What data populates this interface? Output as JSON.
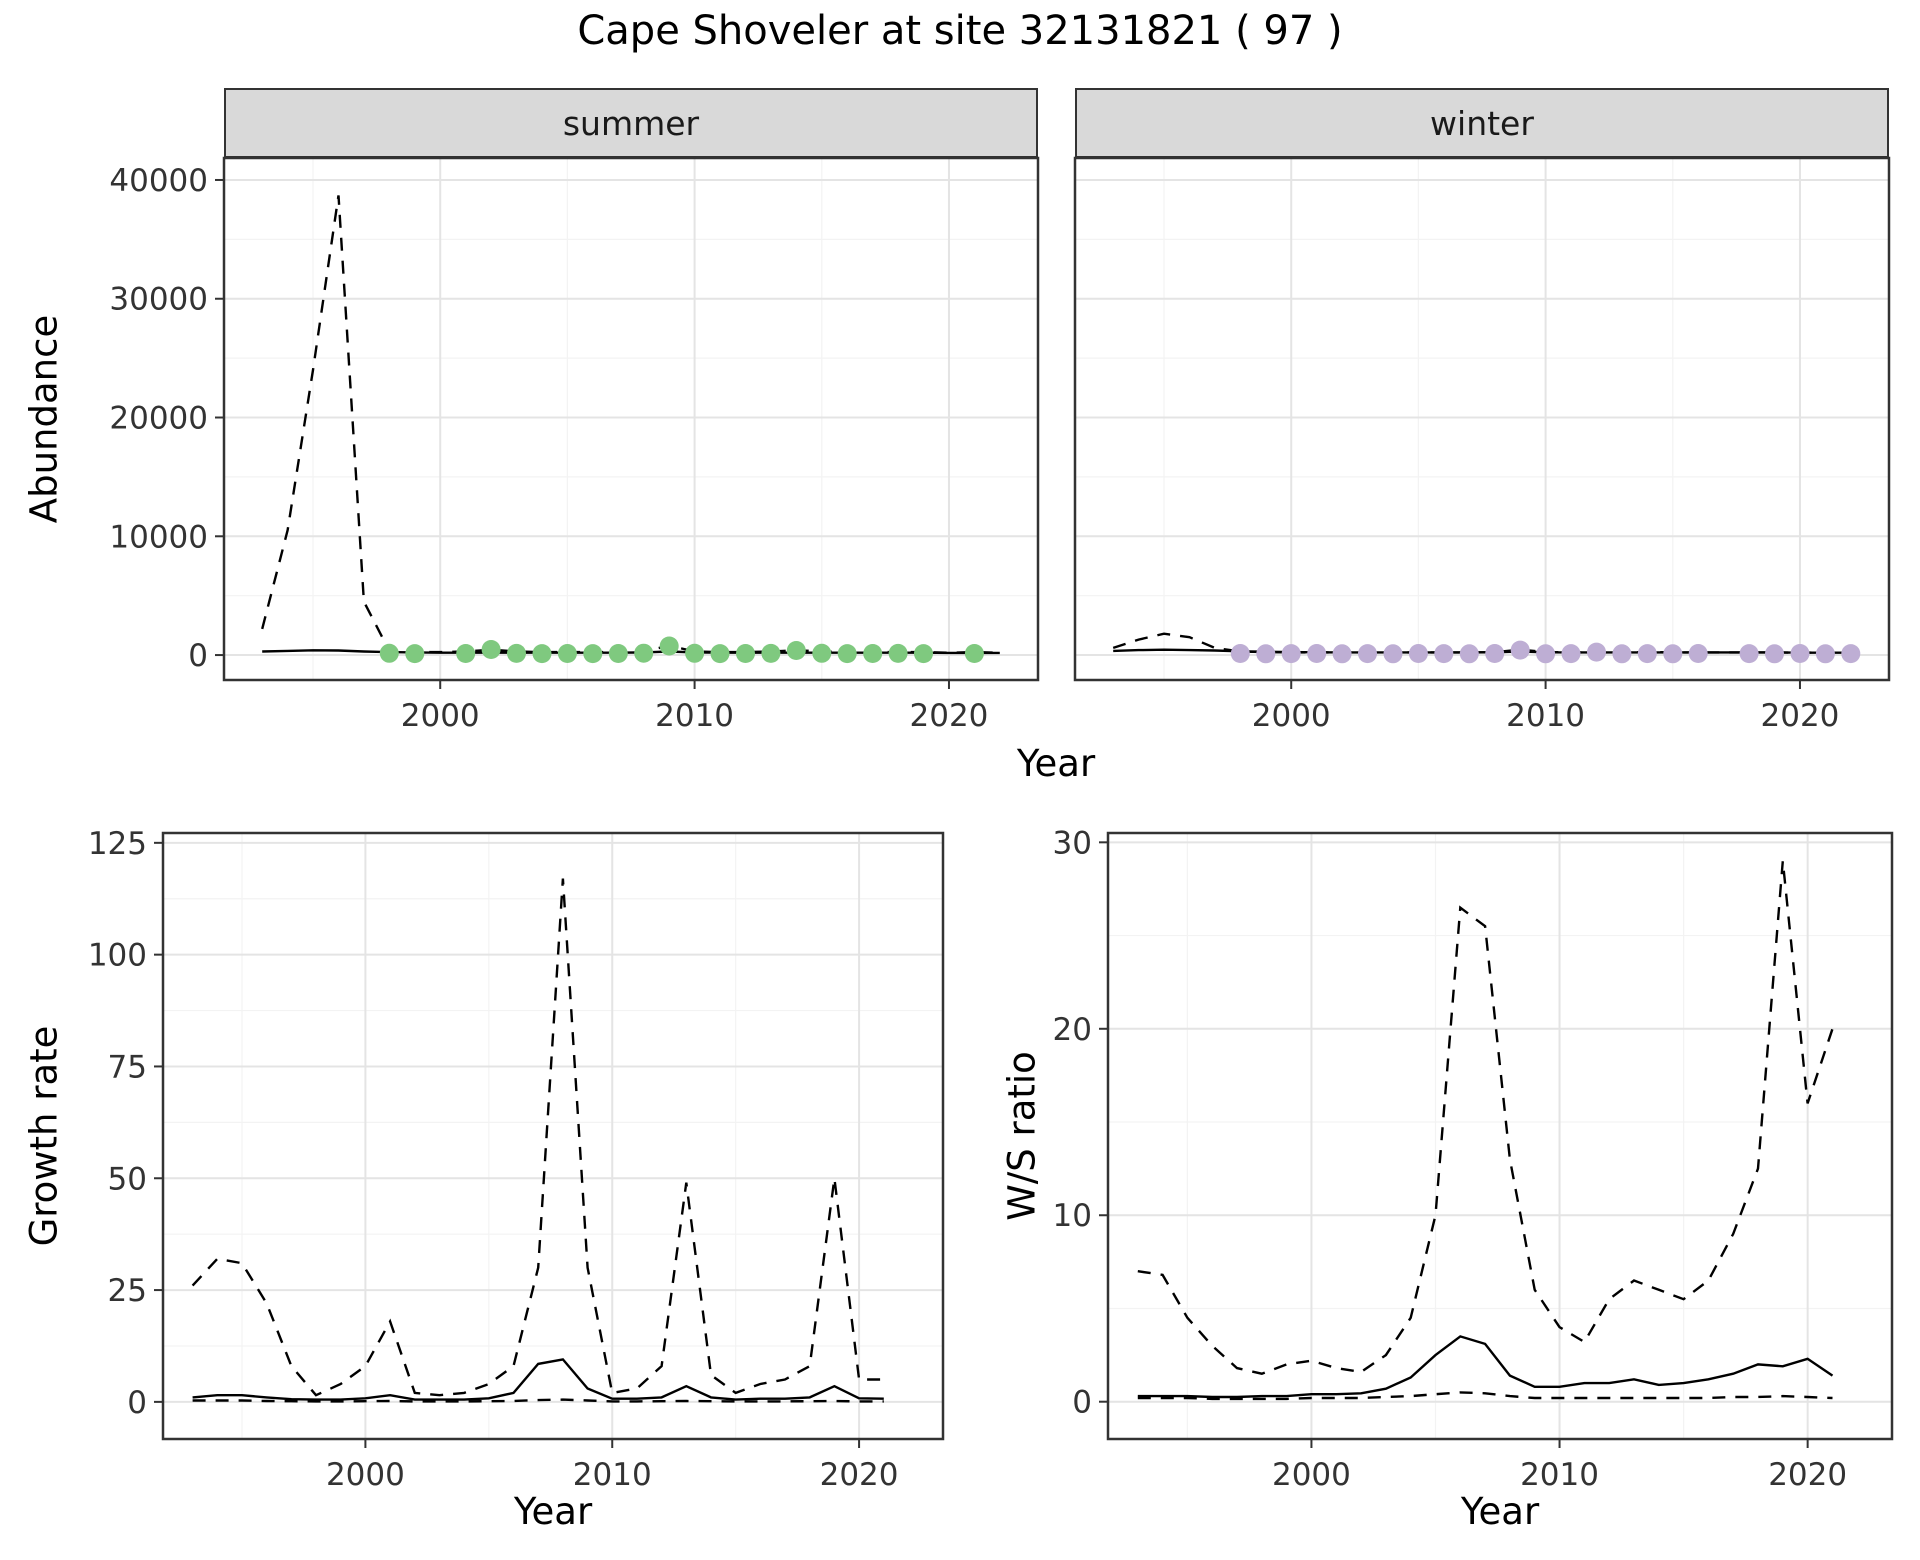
{
  "title": "Cape Shoveler at site 32131821 ( 97 )",
  "colors": {
    "summer_point": "#7FC97F",
    "winter_point": "#BEAED4",
    "line": "#000000",
    "grid_major": "#E4E4E4",
    "grid_minor": "#F3F3F3",
    "panel_border": "#333333",
    "strip_bg": "#D9D9D9"
  },
  "chart_data": [
    {
      "type": "line",
      "title": "",
      "xlabel": "Year",
      "ylabel": "Abundance",
      "x_domain": [
        1991.5,
        2023.5
      ],
      "y_domain": [
        -2100,
        41850
      ],
      "x_ticks": [
        2000,
        2010,
        2020
      ],
      "x_tick_labels": [
        "2000",
        "2010",
        "2020"
      ],
      "x_minor": [
        1995,
        2005,
        2015
      ],
      "y_ticks": [
        0,
        10000,
        20000,
        30000,
        40000
      ],
      "y_tick_labels": [
        "0",
        "10000",
        "20000",
        "30000",
        "40000"
      ],
      "y_minor": [
        5000,
        15000,
        25000,
        35000
      ],
      "legend": "none",
      "facets": [
        {
          "label": "summer",
          "series": [
            {
              "name": "ci-upper",
              "style": "dashed",
              "x": [
                1993,
                1994,
                1995,
                1996,
                1997,
                1998,
                1999,
                2000,
                2001,
                2002,
                2003,
                2004,
                2005,
                2006,
                2007,
                2008,
                2009,
                2010,
                2011,
                2012,
                2013,
                2014,
                2015,
                2016,
                2017,
                2018,
                2019,
                2020,
                2021,
                2022
              ],
              "y": [
                2200,
                10500,
                24000,
                38700,
                4500,
                350,
                250,
                250,
                300,
                450,
                300,
                250,
                250,
                250,
                250,
                300,
                800,
                300,
                250,
                250,
                300,
                400,
                300,
                250,
                250,
                250,
                250,
                200,
                250,
                200
              ]
            },
            {
              "name": "model-fit",
              "style": "solid",
              "x": [
                1993,
                1994,
                1995,
                1996,
                1997,
                1998,
                1999,
                2000,
                2001,
                2002,
                2003,
                2004,
                2005,
                2006,
                2007,
                2008,
                2009,
                2010,
                2011,
                2012,
                2013,
                2014,
                2015,
                2016,
                2017,
                2018,
                2019,
                2020,
                2021,
                2022
              ],
              "y": [
                300,
                350,
                400,
                380,
                300,
                250,
                220,
                200,
                200,
                200,
                200,
                200,
                200,
                200,
                200,
                220,
                300,
                220,
                200,
                200,
                200,
                200,
                200,
                200,
                200,
                200,
                200,
                180,
                180,
                180
              ]
            },
            {
              "name": "observed-count",
              "style": "points",
              "color": "#7FC97F",
              "x": [
                1998,
                1999,
                2001,
                2002,
                2003,
                2004,
                2005,
                2006,
                2007,
                2008,
                2009,
                2010,
                2011,
                2012,
                2013,
                2014,
                2015,
                2016,
                2017,
                2018,
                2019,
                2021
              ],
              "y": [
                150,
                120,
                130,
                470,
                140,
                120,
                130,
                120,
                130,
                160,
                760,
                150,
                120,
                130,
                140,
                380,
                150,
                120,
                130,
                140,
                120,
                130
              ]
            }
          ]
        },
        {
          "label": "winter",
          "series": [
            {
              "name": "ci-upper",
              "style": "dashed",
              "x": [
                1993,
                1994,
                1995,
                1996,
                1997,
                1998,
                1999,
                2000,
                2001,
                2002,
                2003,
                2004,
                2005,
                2006,
                2007,
                2008,
                2009,
                2010,
                2011,
                2012,
                2013,
                2014,
                2015,
                2016,
                2017,
                2018,
                2019,
                2020,
                2021,
                2022
              ],
              "y": [
                600,
                1300,
                1800,
                1500,
                600,
                300,
                250,
                220,
                220,
                220,
                220,
                220,
                220,
                220,
                220,
                250,
                450,
                250,
                220,
                220,
                220,
                250,
                220,
                220,
                220,
                220,
                220,
                200,
                220,
                200
              ]
            },
            {
              "name": "model-fit",
              "style": "solid",
              "x": [
                1993,
                1994,
                1995,
                1996,
                1997,
                1998,
                1999,
                2000,
                2001,
                2002,
                2003,
                2004,
                2005,
                2006,
                2007,
                2008,
                2009,
                2010,
                2011,
                2012,
                2013,
                2014,
                2015,
                2016,
                2017,
                2018,
                2019,
                2020,
                2021,
                2022
              ],
              "y": [
                350,
                420,
                450,
                420,
                380,
                320,
                280,
                250,
                230,
                220,
                220,
                220,
                220,
                220,
                220,
                230,
                300,
                230,
                220,
                220,
                220,
                220,
                220,
                220,
                220,
                220,
                220,
                200,
                200,
                200
              ]
            },
            {
              "name": "observed-count",
              "style": "points",
              "color": "#BEAED4",
              "x": [
                1998,
                1999,
                2000,
                2001,
                2002,
                2003,
                2004,
                2005,
                2006,
                2007,
                2008,
                2009,
                2010,
                2011,
                2012,
                2013,
                2014,
                2015,
                2016,
                2018,
                2019,
                2020,
                2021,
                2022
              ],
              "y": [
                130,
                110,
                120,
                130,
                110,
                120,
                110,
                130,
                120,
                110,
                130,
                420,
                110,
                120,
                250,
                110,
                120,
                110,
                130,
                120,
                110,
                130,
                110,
                120
              ]
            }
          ]
        }
      ]
    },
    {
      "type": "line",
      "title": "",
      "xlabel": "Year",
      "ylabel": "Growth rate",
      "x_domain": [
        1991.8,
        2023.4
      ],
      "y_domain": [
        -8.3,
        127.2
      ],
      "x_ticks": [
        2000,
        2010,
        2020
      ],
      "x_tick_labels": [
        "2000",
        "2010",
        "2020"
      ],
      "x_minor": [
        1995,
        2005,
        2015
      ],
      "y_ticks": [
        0,
        25,
        50,
        75,
        100,
        125
      ],
      "y_tick_labels": [
        "0",
        "25",
        "50",
        "75",
        "100",
        "125"
      ],
      "y_minor": [
        12.5,
        37.5,
        62.5,
        87.5,
        112.5
      ],
      "legend": "none",
      "series": [
        {
          "name": "ci-upper",
          "style": "dashed",
          "x": [
            1993,
            1994,
            1995,
            1996,
            1997,
            1998,
            1999,
            2000,
            2001,
            2002,
            2003,
            2004,
            2005,
            2006,
            2007,
            2008,
            2009,
            2010,
            2011,
            2012,
            2013,
            2014,
            2015,
            2016,
            2017,
            2018,
            2019,
            2020,
            2021
          ],
          "y": [
            26,
            32,
            31,
            22,
            8,
            1.5,
            4,
            8,
            18,
            2,
            1.5,
            2,
            4,
            8,
            30,
            117,
            30,
            2,
            3,
            8,
            49,
            6,
            2,
            4,
            5,
            8,
            50,
            5,
            5
          ]
        },
        {
          "name": "ci-lower",
          "style": "dashed",
          "x": [
            1993,
            1994,
            1995,
            1996,
            1997,
            1998,
            1999,
            2000,
            2001,
            2002,
            2003,
            2004,
            2005,
            2006,
            2007,
            2008,
            2009,
            2010,
            2011,
            2012,
            2013,
            2014,
            2015,
            2016,
            2017,
            2018,
            2019,
            2020,
            2021
          ],
          "y": [
            0.3,
            0.3,
            0.3,
            0.2,
            0.15,
            0.1,
            0.1,
            0.15,
            0.2,
            0.1,
            0.1,
            0.1,
            0.15,
            0.2,
            0.4,
            0.5,
            0.3,
            0.1,
            0.1,
            0.15,
            0.2,
            0.15,
            0.1,
            0.1,
            0.1,
            0.15,
            0.2,
            0.1,
            0.1
          ]
        },
        {
          "name": "estimate",
          "style": "solid",
          "x": [
            1993,
            1994,
            1995,
            1996,
            1997,
            1998,
            1999,
            2000,
            2001,
            2002,
            2003,
            2004,
            2005,
            2006,
            2007,
            2008,
            2009,
            2010,
            2011,
            2012,
            2013,
            2014,
            2015,
            2016,
            2017,
            2018,
            2019,
            2020,
            2021
          ],
          "y": [
            1,
            1.5,
            1.5,
            1,
            0.6,
            0.5,
            0.5,
            0.8,
            1.5,
            0.5,
            0.5,
            0.5,
            0.8,
            2,
            8.5,
            9.5,
            3,
            0.7,
            0.7,
            1,
            3.5,
            1,
            0.5,
            0.7,
            0.7,
            1,
            3.5,
            0.8,
            0.7
          ]
        }
      ]
    },
    {
      "type": "line",
      "title": "",
      "xlabel": "Year",
      "ylabel": "W/S ratio",
      "x_domain": [
        1991.8,
        2023.4
      ],
      "y_domain": [
        -2,
        30.5
      ],
      "x_ticks": [
        2000,
        2010,
        2020
      ],
      "x_tick_labels": [
        "2000",
        "2010",
        "2020"
      ],
      "x_minor": [
        1995,
        2005,
        2015
      ],
      "y_ticks": [
        0,
        10,
        20,
        30
      ],
      "y_tick_labels": [
        "0",
        "10",
        "20",
        "30"
      ],
      "y_minor": [
        5,
        15,
        25
      ],
      "legend": "none",
      "series": [
        {
          "name": "ci-upper",
          "style": "dashed",
          "x": [
            1993,
            1994,
            1995,
            1996,
            1997,
            1998,
            1999,
            2000,
            2001,
            2002,
            2003,
            2004,
            2005,
            2006,
            2007,
            2008,
            2009,
            2010,
            2011,
            2012,
            2013,
            2014,
            2015,
            2016,
            2017,
            2018,
            2019,
            2020,
            2021
          ],
          "y": [
            7,
            6.8,
            4.5,
            3,
            1.8,
            1.5,
            2,
            2.2,
            1.8,
            1.6,
            2.5,
            4.5,
            10,
            26.5,
            25.5,
            13,
            6,
            4,
            3.2,
            5.5,
            6.5,
            6,
            5.5,
            6.5,
            9,
            12.5,
            29,
            16,
            20
          ]
        },
        {
          "name": "ci-lower",
          "style": "dashed",
          "x": [
            1993,
            1994,
            1995,
            1996,
            1997,
            1998,
            1999,
            2000,
            2001,
            2002,
            2003,
            2004,
            2005,
            2006,
            2007,
            2008,
            2009,
            2010,
            2011,
            2012,
            2013,
            2014,
            2015,
            2016,
            2017,
            2018,
            2019,
            2020,
            2021
          ],
          "y": [
            0.2,
            0.2,
            0.2,
            0.15,
            0.15,
            0.15,
            0.15,
            0.2,
            0.2,
            0.2,
            0.25,
            0.3,
            0.4,
            0.5,
            0.45,
            0.3,
            0.2,
            0.2,
            0.2,
            0.2,
            0.2,
            0.2,
            0.2,
            0.2,
            0.25,
            0.25,
            0.3,
            0.25,
            0.2
          ]
        },
        {
          "name": "estimate",
          "style": "solid",
          "x": [
            1993,
            1994,
            1995,
            1996,
            1997,
            1998,
            1999,
            2000,
            2001,
            2002,
            2003,
            2004,
            2005,
            2006,
            2007,
            2008,
            2009,
            2010,
            2011,
            2012,
            2013,
            2014,
            2015,
            2016,
            2017,
            2018,
            2019,
            2020,
            2021
          ],
          "y": [
            0.3,
            0.3,
            0.3,
            0.25,
            0.25,
            0.3,
            0.3,
            0.4,
            0.4,
            0.45,
            0.7,
            1.3,
            2.5,
            3.5,
            3.1,
            1.4,
            0.8,
            0.8,
            1,
            1,
            1.2,
            0.9,
            1,
            1.2,
            1.5,
            2,
            1.9,
            2.3,
            1.4
          ]
        }
      ]
    }
  ]
}
